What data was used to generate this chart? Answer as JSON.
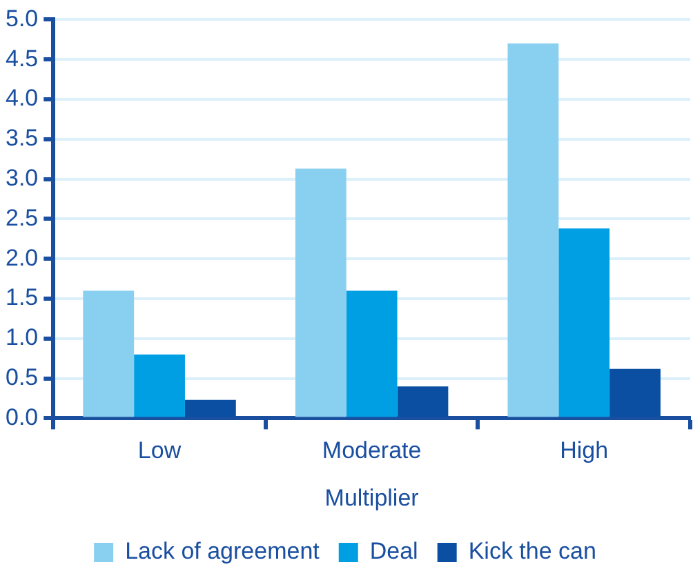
{
  "chart_data": {
    "type": "bar",
    "xlabel": "Multiplier",
    "categories": [
      "Low",
      "Moderate",
      "High"
    ],
    "series": [
      {
        "name": "Lack of agreement",
        "color": "#89cff0",
        "values": [
          1.6,
          3.13,
          4.7
        ]
      },
      {
        "name": "Deal",
        "color": "#009fe3",
        "values": [
          0.8,
          1.6,
          2.38
        ]
      },
      {
        "name": "Kick the can",
        "color": "#0b4fa3",
        "values": [
          0.23,
          0.4,
          0.62
        ]
      }
    ],
    "ylim": [
      0,
      5
    ],
    "yticks": [
      {
        "value": 0,
        "label": "0.0"
      },
      {
        "value": 0.5,
        "label": "0.5"
      },
      {
        "value": 1,
        "label": "1.0"
      },
      {
        "value": 1.5,
        "label": "1.5"
      },
      {
        "value": 2,
        "label": "2.0"
      },
      {
        "value": 2.5,
        "label": "2.5"
      },
      {
        "value": 3,
        "label": "3.0"
      },
      {
        "value": 3.5,
        "label": "3.5"
      },
      {
        "value": 4,
        "label": "4.0"
      },
      {
        "value": 4.5,
        "label": "4.5"
      },
      {
        "value": 5,
        "label": "5.0"
      }
    ],
    "grid": "y",
    "legend": "bottom"
  }
}
